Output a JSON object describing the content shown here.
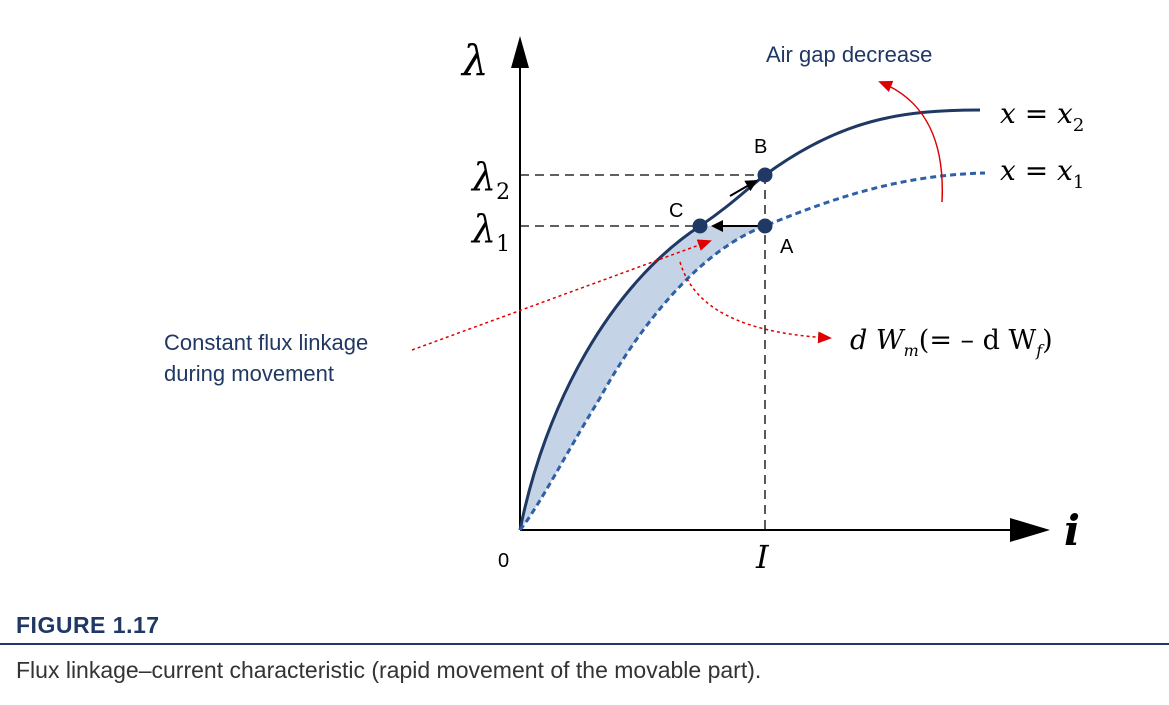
{
  "labels": {
    "y_axis": "λ",
    "x_axis": "i",
    "origin": "0",
    "current_I": "I",
    "lambda2_sym": "λ",
    "lambda2_sub": "2",
    "lambda1_sym": "λ",
    "lambda1_sub": "1",
    "curve_x2_lhs": "x = x",
    "curve_x2_sub": "2",
    "curve_x1_lhs": "x = x",
    "curve_x1_sub": "1",
    "point_A": "A",
    "point_B": "B",
    "point_C": "C",
    "air_gap_note": "Air gap decrease",
    "constant_flux_line1": "Constant flux linkage",
    "constant_flux_line2": "during movement",
    "energy_d1": "d W",
    "energy_m": "m",
    "energy_mid": "(= – d W",
    "energy_f": "f",
    "energy_close": ")"
  },
  "figure": {
    "title": "FIGURE 1.17",
    "caption": "Flux linkage–current characteristic (rapid movement of the movable part)."
  },
  "colors": {
    "curve_solid": "#1f3864",
    "curve_dashed": "#2e5fa8",
    "shade": "#c5d3e6",
    "annotation_red": "#e00000",
    "point_fill": "#1f3864"
  }
}
